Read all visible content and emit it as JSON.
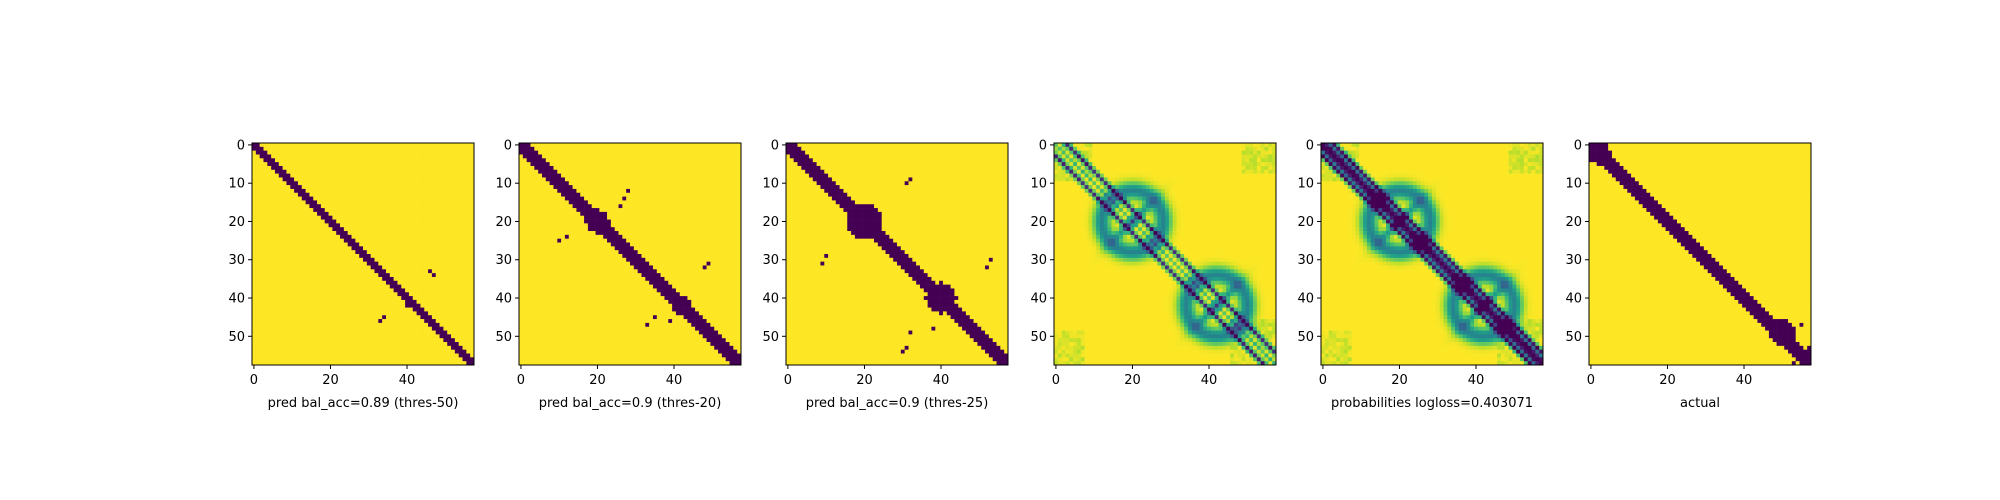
{
  "chart_data": [
    {
      "type": "heatmap",
      "subtype": "binary",
      "xlabel": "pred bal_acc=0.89 (thres-50)",
      "size": 58,
      "xticks": [
        0,
        20,
        40
      ],
      "yticks": [
        0,
        10,
        20,
        30,
        40,
        50
      ],
      "colormap": "viridis",
      "band_halfwidth": 1.5,
      "blobs": [],
      "dots": [
        [
          33,
          46
        ],
        [
          34,
          47
        ],
        [
          45,
          34
        ],
        [
          46,
          33
        ],
        [
          42,
          40
        ]
      ]
    },
    {
      "type": "heatmap",
      "subtype": "binary",
      "xlabel": "pred bal_acc=0.9 (thres-20)",
      "size": 58,
      "xticks": [
        0,
        20,
        40
      ],
      "yticks": [
        0,
        10,
        20,
        30,
        40,
        50
      ],
      "colormap": "viridis",
      "band_halfwidth": 2.0,
      "blobs": [
        [
          20,
          20,
          3.0
        ],
        [
          42,
          42,
          2.5
        ]
      ],
      "dots": [
        [
          12,
          28
        ],
        [
          14,
          27
        ],
        [
          16,
          26
        ],
        [
          24,
          12
        ],
        [
          25,
          10
        ],
        [
          32,
          48
        ],
        [
          31,
          49
        ],
        [
          45,
          35
        ],
        [
          47,
          33
        ],
        [
          46,
          39
        ]
      ]
    },
    {
      "type": "heatmap",
      "subtype": "binary",
      "xlabel": "pred bal_acc=0.9 (thres-25)",
      "size": 58,
      "xticks": [
        0,
        20,
        40
      ],
      "yticks": [
        0,
        10,
        20,
        30,
        40,
        50
      ],
      "colormap": "viridis",
      "band_halfwidth": 2.5,
      "blobs": [
        [
          20,
          20,
          4.5
        ],
        [
          40,
          40,
          4.0
        ]
      ],
      "dots": [
        [
          9,
          32
        ],
        [
          10,
          31
        ],
        [
          31,
          9
        ],
        [
          29,
          10
        ],
        [
          32,
          52
        ],
        [
          30,
          53
        ],
        [
          53,
          31
        ],
        [
          54,
          30
        ],
        [
          48,
          38
        ],
        [
          49,
          32
        ]
      ]
    },
    {
      "type": "heatmap",
      "subtype": "continuous",
      "xlabel": "",
      "size": 58,
      "xticks": [
        0,
        20,
        40
      ],
      "yticks": [
        0,
        10,
        20,
        30,
        40,
        50
      ],
      "colormap": "viridis",
      "main_diagonal": false
    },
    {
      "type": "heatmap",
      "subtype": "continuous",
      "xlabel": "probabilities logloss=0.403071",
      "size": 58,
      "xticks": [
        0,
        20,
        40
      ],
      "yticks": [
        0,
        10,
        20,
        30,
        40,
        50
      ],
      "colormap": "viridis",
      "main_diagonal": true
    },
    {
      "type": "heatmap",
      "subtype": "binary",
      "xlabel": "actual",
      "size": 58,
      "xticks": [
        0,
        20,
        40
      ],
      "yticks": [
        0,
        10,
        20,
        30,
        40,
        50
      ],
      "colormap": "viridis",
      "band_halfwidth": 2.0,
      "blobs": [
        [
          49,
          50,
          3.5
        ],
        [
          2,
          2,
          3.0
        ]
      ],
      "dots": [
        [
          53,
          57
        ],
        [
          54,
          57
        ],
        [
          57,
          53
        ],
        [
          47,
          55
        ]
      ]
    }
  ]
}
